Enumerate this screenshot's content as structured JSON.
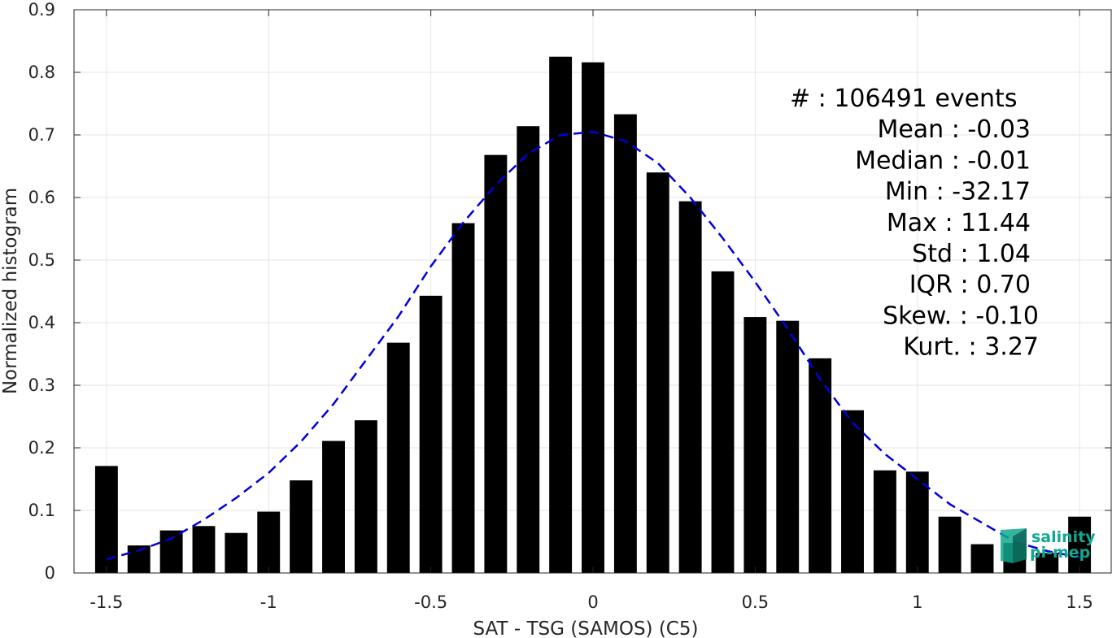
{
  "chart_data": {
    "type": "bar",
    "xlabel": "SAT - TSG (SAMOS) (C5)",
    "ylabel": "Normalized histogram",
    "xlim": [
      -1.6,
      1.6
    ],
    "ylim": [
      0,
      0.9
    ],
    "grid": true,
    "bar_width": 0.07,
    "x_ticks": [
      -1.5,
      -1,
      -0.5,
      0,
      0.5,
      1,
      1.5
    ],
    "x_tick_labels": [
      "-1.5",
      "-1",
      "-0.5",
      "0",
      "0.5",
      "1",
      "1.5"
    ],
    "y_ticks": [
      0,
      0.1,
      0.2,
      0.3,
      0.4,
      0.5,
      0.6,
      0.7,
      0.8,
      0.9
    ],
    "y_tick_labels": [
      "0",
      "0.1",
      "0.2",
      "0.3",
      "0.4",
      "0.5",
      "0.6",
      "0.7",
      "0.8",
      "0.9"
    ],
    "bars": {
      "x": [
        -1.5,
        -1.4,
        -1.3,
        -1.2,
        -1.1,
        -1.0,
        -0.9,
        -0.8,
        -0.7,
        -0.6,
        -0.5,
        -0.4,
        -0.3,
        -0.2,
        -0.1,
        0.0,
        0.1,
        0.2,
        0.3,
        0.4,
        0.5,
        0.6,
        0.7,
        0.8,
        0.9,
        1.0,
        1.1,
        1.2,
        1.3,
        1.4,
        1.5
      ],
      "values": [
        0.171,
        0.044,
        0.068,
        0.075,
        0.064,
        0.098,
        0.148,
        0.211,
        0.244,
        0.368,
        0.443,
        0.559,
        0.668,
        0.714,
        0.825,
        0.816,
        0.733,
        0.64,
        0.594,
        0.482,
        0.409,
        0.403,
        0.343,
        0.26,
        0.164,
        0.162,
        0.09,
        0.046,
        0.048,
        0.032,
        0.09
      ],
      "color": "#000000"
    },
    "fit": {
      "style": "dashed",
      "color": "#0000dd",
      "x": [
        -1.5,
        -1.4,
        -1.3,
        -1.2,
        -1.1,
        -1.0,
        -0.9,
        -0.8,
        -0.7,
        -0.6,
        -0.5,
        -0.4,
        -0.3,
        -0.2,
        -0.1,
        0.0,
        0.1,
        0.2,
        0.3,
        0.4,
        0.5,
        0.6,
        0.7,
        0.8,
        0.9,
        1.0,
        1.1,
        1.2,
        1.3,
        1.4,
        1.5
      ],
      "y": [
        0.022,
        0.036,
        0.055,
        0.085,
        0.12,
        0.16,
        0.21,
        0.27,
        0.34,
        0.41,
        0.49,
        0.56,
        0.62,
        0.67,
        0.7,
        0.705,
        0.69,
        0.655,
        0.6,
        0.535,
        0.465,
        0.39,
        0.31,
        0.24,
        0.19,
        0.15,
        0.11,
        0.08,
        0.05,
        0.035,
        0.025
      ]
    }
  },
  "stats": [
    {
      "label": "#  : 106491 events",
      "anchor": "start"
    },
    {
      "label": "Mean : -0.03",
      "anchor": "end"
    },
    {
      "label": "Median : -0.01",
      "anchor": "end"
    },
    {
      "label": "Min : -32.17",
      "anchor": "end"
    },
    {
      "label": "Max : 11.44",
      "anchor": "end"
    },
    {
      "label": "Std : 1.04",
      "anchor": "end"
    },
    {
      "label": "IQR : 0.70",
      "anchor": "end"
    },
    {
      "label": "Skew. : -0.10",
      "anchor": "end"
    },
    {
      "label": "Kurt. : 3.27",
      "anchor": "end"
    }
  ],
  "logo": {
    "line1": "salinity",
    "line2": "pi-mep",
    "color": "#12a88f"
  }
}
